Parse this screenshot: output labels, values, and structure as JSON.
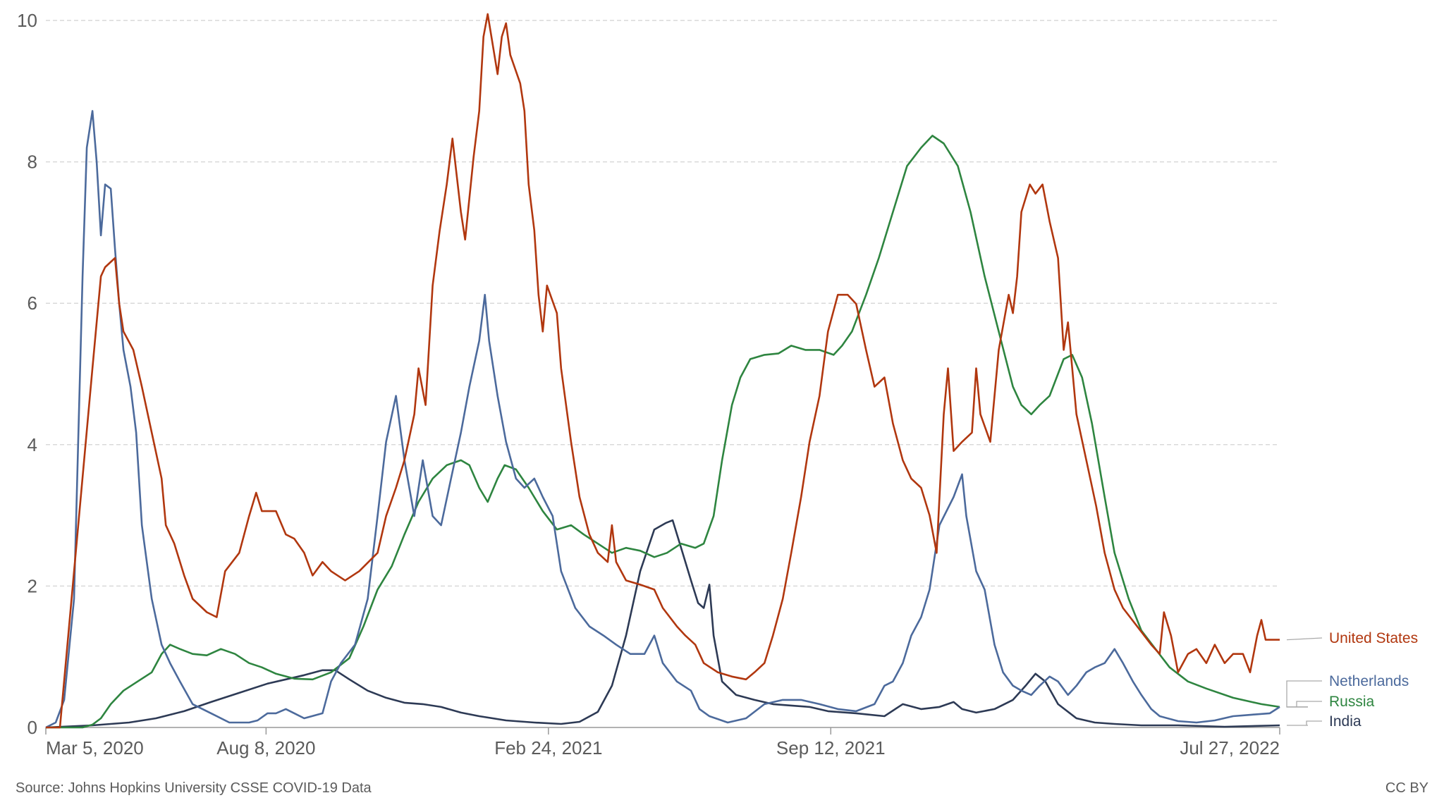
{
  "chart_data": {
    "type": "line",
    "title": "",
    "xlabel": "",
    "ylabel": "",
    "x_unit": "days since Mar 5, 2020",
    "xlim": [
      0,
      874
    ],
    "ylim": [
      0,
      10
    ],
    "grid": true,
    "legend_placement": "right (line-end labels)",
    "y_ticks": [
      0,
      2,
      4,
      6,
      8,
      10
    ],
    "x_ticks": [
      {
        "day": 0,
        "label": "Mar 5, 2020"
      },
      {
        "day": 156,
        "label": "Aug 8, 2020"
      },
      {
        "day": 356,
        "label": "Feb 24, 2021"
      },
      {
        "day": 556,
        "label": "Sep 12, 2021"
      },
      {
        "day": 874,
        "label": "Jul 27, 2022"
      }
    ],
    "series": [
      {
        "name": "United States",
        "color": "#b1370f",
        "x": [
          0,
          10,
          33,
          39,
          42,
          49,
          52,
          55,
          62,
          68,
          75,
          82,
          85,
          91,
          98,
          104,
          114,
          121,
          127,
          137,
          144,
          149,
          153,
          163,
          170,
          176,
          183,
          189,
          196,
          202,
          212,
          222,
          235,
          241,
          248,
          254,
          261,
          264,
          269,
          274,
          279,
          284,
          288,
          294,
          297,
          303,
          307,
          310,
          313,
          320,
          323,
          326,
          329,
          336,
          339,
          342,
          346,
          349,
          352,
          355,
          362,
          365,
          372,
          378,
          385,
          391,
          398,
          401,
          404,
          411,
          421,
          431,
          437,
          447,
          453,
          460,
          466,
          476,
          486,
          496,
          502,
          509,
          515,
          522,
          528,
          535,
          541,
          548,
          554,
          561,
          568,
          574,
          581,
          587,
          594,
          600,
          607,
          613,
          620,
          626,
          631,
          636,
          639,
          643,
          649,
          656,
          659,
          662,
          669,
          675,
          682,
          685,
          688,
          691,
          697,
          701,
          706,
          711,
          717,
          721,
          724,
          727,
          730,
          737,
          744,
          750,
          757,
          763,
          773,
          783,
          789,
          792,
          797,
          802,
          809,
          815,
          822,
          828,
          835,
          841,
          848,
          853,
          858,
          861,
          864,
          874
        ],
        "values": [
          0,
          0,
          5.08,
          6.38,
          6.51,
          6.64,
          5.99,
          5.6,
          5.34,
          4.82,
          4.17,
          3.52,
          2.86,
          2.6,
          2.15,
          1.82,
          1.63,
          1.56,
          2.21,
          2.47,
          2.99,
          3.32,
          3.06,
          3.06,
          2.73,
          2.67,
          2.47,
          2.15,
          2.34,
          2.21,
          2.08,
          2.21,
          2.47,
          2.99,
          3.39,
          3.78,
          4.43,
          5.08,
          4.56,
          6.25,
          7.03,
          7.68,
          8.33,
          7.29,
          6.9,
          8.07,
          8.72,
          9.77,
          10.09,
          9.24,
          9.77,
          9.96,
          9.51,
          9.11,
          8.72,
          7.68,
          7.03,
          6.12,
          5.6,
          6.25,
          5.86,
          5.08,
          4.04,
          3.26,
          2.73,
          2.47,
          2.34,
          2.86,
          2.34,
          2.08,
          2.02,
          1.95,
          1.69,
          1.43,
          1.3,
          1.17,
          0.91,
          0.78,
          0.72,
          0.68,
          0.78,
          0.91,
          1.3,
          1.82,
          2.47,
          3.26,
          4.04,
          4.69,
          5.6,
          6.12,
          6.12,
          5.99,
          5.34,
          4.82,
          4.95,
          4.3,
          3.78,
          3.52,
          3.39,
          3.0,
          2.47,
          4.43,
          5.08,
          3.91,
          4.04,
          4.17,
          5.08,
          4.43,
          4.04,
          5.34,
          6.12,
          5.86,
          6.38,
          7.29,
          7.68,
          7.55,
          7.68,
          7.16,
          6.64,
          5.34,
          5.73,
          5.08,
          4.43,
          3.78,
          3.13,
          2.47,
          1.95,
          1.69,
          1.43,
          1.17,
          1.04,
          1.63,
          1.3,
          0.78,
          1.04,
          1.11,
          0.91,
          1.17,
          0.91,
          1.04,
          1.04,
          0.78,
          1.3,
          1.52,
          1.24,
          1.24
        ]
      },
      {
        "name": "Netherlands",
        "color": "#4c6a9c",
        "x": [
          0,
          7,
          13,
          20,
          26,
          29,
          33,
          36,
          39,
          42,
          46,
          49,
          52,
          55,
          60,
          64,
          68,
          75,
          82,
          88,
          95,
          104,
          117,
          130,
          144,
          150,
          157,
          163,
          170,
          176,
          183,
          196,
          202,
          209,
          219,
          228,
          235,
          241,
          248,
          254,
          261,
          267,
          274,
          280,
          287,
          294,
          300,
          307,
          311,
          314,
          320,
          326,
          333,
          339,
          346,
          352,
          359,
          365,
          375,
          385,
          395,
          404,
          414,
          424,
          431,
          437,
          447,
          457,
          463,
          470,
          483,
          496,
          509,
          522,
          535,
          548,
          561,
          574,
          587,
          594,
          600,
          607,
          613,
          620,
          626,
          633,
          643,
          649,
          652,
          659,
          665,
          672,
          678,
          685,
          691,
          698,
          704,
          711,
          717,
          724,
          730,
          737,
          743,
          750,
          757,
          763,
          770,
          776,
          783,
          789,
          802,
          815,
          828,
          841,
          854,
          867,
          874
        ],
        "values": [
          0,
          0.07,
          0.39,
          1.82,
          6.38,
          8.2,
          8.72,
          8.0,
          6.96,
          7.68,
          7.62,
          6.77,
          5.99,
          5.34,
          4.82,
          4.17,
          2.86,
          1.82,
          1.17,
          0.91,
          0.65,
          0.33,
          0.2,
          0.07,
          0.07,
          0.1,
          0.2,
          0.2,
          0.26,
          0.2,
          0.13,
          0.2,
          0.65,
          0.91,
          1.17,
          1.82,
          2.99,
          4.04,
          4.69,
          3.78,
          2.99,
          3.78,
          2.99,
          2.86,
          3.52,
          4.17,
          4.82,
          5.47,
          6.12,
          5.47,
          4.69,
          4.04,
          3.52,
          3.39,
          3.52,
          3.26,
          2.99,
          2.21,
          1.69,
          1.43,
          1.3,
          1.17,
          1.04,
          1.04,
          1.3,
          0.91,
          0.65,
          0.52,
          0.26,
          0.16,
          0.07,
          0.13,
          0.33,
          0.39,
          0.39,
          0.33,
          0.26,
          0.23,
          0.33,
          0.59,
          0.65,
          0.91,
          1.3,
          1.56,
          1.95,
          2.86,
          3.26,
          3.58,
          2.99,
          2.21,
          1.95,
          1.17,
          0.78,
          0.59,
          0.52,
          0.46,
          0.59,
          0.72,
          0.65,
          0.46,
          0.59,
          0.78,
          0.85,
          0.91,
          1.11,
          0.91,
          0.65,
          0.46,
          0.26,
          0.16,
          0.09,
          0.07,
          0.1,
          0.16,
          0.18,
          0.2,
          0.29
        ]
      },
      {
        "name": "Russia",
        "color": "#2e8540",
        "x": [
          0,
          26,
          33,
          39,
          46,
          55,
          65,
          75,
          82,
          88,
          95,
          104,
          114,
          124,
          134,
          144,
          153,
          163,
          176,
          189,
          202,
          215,
          225,
          235,
          245,
          254,
          264,
          274,
          284,
          294,
          300,
          307,
          313,
          320,
          325,
          333,
          342,
          352,
          362,
          372,
          381,
          391,
          401,
          411,
          421,
          431,
          440,
          450,
          460,
          466,
          473,
          479,
          486,
          492,
          499,
          509,
          519,
          528,
          538,
          548,
          558,
          564,
          571,
          581,
          590,
          600,
          610,
          620,
          628,
          636,
          646,
          655,
          665,
          675,
          685,
          691,
          698,
          704,
          711,
          721,
          727,
          734,
          741,
          750,
          757,
          767,
          776,
          786,
          796,
          809,
          822,
          841,
          861,
          874
        ],
        "values": [
          0,
          0,
          0.04,
          0.13,
          0.33,
          0.52,
          0.65,
          0.78,
          1.04,
          1.17,
          1.11,
          1.04,
          1.02,
          1.11,
          1.04,
          0.91,
          0.85,
          0.76,
          0.69,
          0.68,
          0.78,
          0.98,
          1.43,
          1.95,
          2.28,
          2.73,
          3.19,
          3.52,
          3.71,
          3.78,
          3.71,
          3.39,
          3.19,
          3.52,
          3.71,
          3.65,
          3.39,
          3.06,
          2.8,
          2.86,
          2.73,
          2.6,
          2.47,
          2.54,
          2.5,
          2.41,
          2.47,
          2.6,
          2.54,
          2.6,
          2.99,
          3.78,
          4.56,
          4.95,
          5.21,
          5.27,
          5.29,
          5.4,
          5.34,
          5.34,
          5.27,
          5.4,
          5.6,
          6.12,
          6.64,
          7.29,
          7.94,
          8.2,
          8.37,
          8.26,
          7.94,
          7.29,
          6.38,
          5.6,
          4.82,
          4.56,
          4.43,
          4.56,
          4.69,
          5.21,
          5.27,
          4.95,
          4.3,
          3.26,
          2.47,
          1.82,
          1.37,
          1.11,
          0.85,
          0.65,
          0.55,
          0.42,
          0.33,
          0.29
        ]
      },
      {
        "name": "India",
        "color": "#2d3a55",
        "x": [
          0,
          33,
          59,
          78,
          98,
          117,
          137,
          157,
          170,
          183,
          196,
          205,
          215,
          228,
          241,
          254,
          267,
          280,
          294,
          307,
          326,
          346,
          365,
          378,
          391,
          401,
          411,
          421,
          431,
          439,
          444,
          450,
          457,
          462,
          466,
          470,
          473,
          479,
          489,
          502,
          515,
          528,
          541,
          554,
          574,
          594,
          607,
          620,
          633,
          643,
          649,
          659,
          672,
          685,
          694,
          701,
          708,
          717,
          730,
          743,
          757,
          776,
          802,
          835,
          874
        ],
        "values": [
          0,
          0.03,
          0.07,
          0.13,
          0.23,
          0.36,
          0.49,
          0.62,
          0.68,
          0.74,
          0.81,
          0.81,
          0.68,
          0.52,
          0.42,
          0.35,
          0.33,
          0.29,
          0.21,
          0.16,
          0.1,
          0.07,
          0.05,
          0.08,
          0.22,
          0.59,
          1.3,
          2.21,
          2.8,
          2.89,
          2.93,
          2.54,
          2.08,
          1.76,
          1.69,
          2.02,
          1.3,
          0.65,
          0.46,
          0.39,
          0.33,
          0.31,
          0.29,
          0.23,
          0.2,
          0.16,
          0.33,
          0.26,
          0.29,
          0.36,
          0.26,
          0.21,
          0.26,
          0.39,
          0.59,
          0.76,
          0.65,
          0.33,
          0.13,
          0.07,
          0.05,
          0.03,
          0.03,
          0.01,
          0.03
        ]
      }
    ],
    "source": "Source: Johns Hopkins University CSSE COVID-19 Data",
    "license": "CC BY"
  }
}
